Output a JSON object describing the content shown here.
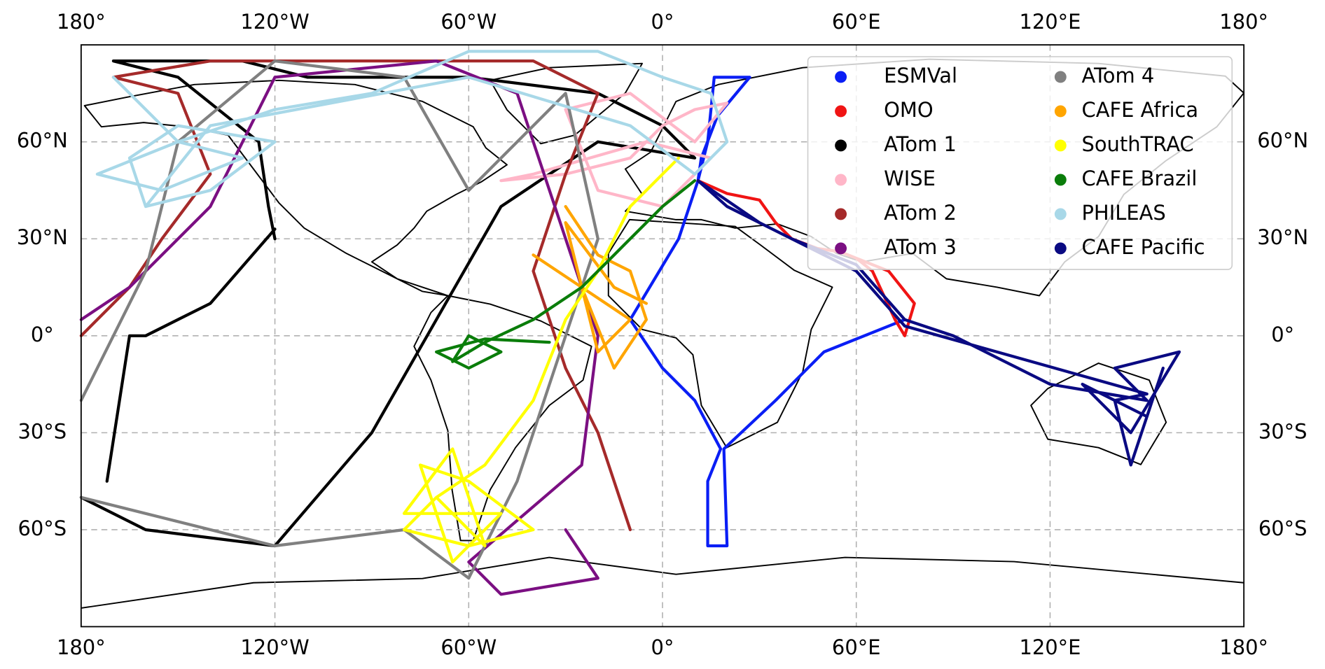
{
  "chart_data": {
    "type": "map",
    "xlim": [
      -180,
      180
    ],
    "ylim": [
      -90,
      90
    ],
    "xticks": [
      {
        "value": -180,
        "label": "180°"
      },
      {
        "value": -120,
        "label": "120°W"
      },
      {
        "value": -60,
        "label": "60°W"
      },
      {
        "value": 0,
        "label": "0°"
      },
      {
        "value": 60,
        "label": "60°E"
      },
      {
        "value": 120,
        "label": "120°E"
      },
      {
        "value": 180,
        "label": "180°"
      }
    ],
    "yticks": [
      {
        "value": 60,
        "label": "60°N"
      },
      {
        "value": 30,
        "label": "30°N"
      },
      {
        "value": 0,
        "label": "0°"
      },
      {
        "value": -30,
        "label": "30°S"
      },
      {
        "value": -60,
        "label": "60°S"
      }
    ],
    "grid": true,
    "legend": "upper right",
    "legend_columns": 2,
    "series": [
      {
        "name": "ESMVal",
        "color": "#0a1ef5",
        "x": [
          11,
          14,
          16,
          25,
          27,
          17,
          12,
          11,
          5,
          -10,
          0,
          10,
          18,
          14,
          14,
          20,
          19,
          35,
          50,
          75
        ],
        "values": [
          48,
          60,
          80,
          80,
          80,
          68,
          55,
          48,
          30,
          5,
          -10,
          -20,
          -35,
          -45,
          -65,
          -65,
          -35,
          -20,
          -5,
          5
        ]
      },
      {
        "name": "OMO",
        "color": "#f01414",
        "x": [
          11,
          20,
          30,
          35,
          40,
          48,
          55,
          60,
          65,
          72,
          75,
          78,
          70,
          60
        ],
        "values": [
          48,
          44,
          42,
          35,
          30,
          27,
          26,
          24,
          20,
          5,
          0,
          10,
          20,
          24
        ]
      },
      {
        "name": "ATom 1",
        "color": "#000000",
        "x": [
          -120,
          -122,
          -125,
          -150,
          -170,
          -130,
          -110,
          -60,
          -20,
          0,
          10,
          -20,
          -50,
          -70,
          -90,
          -120,
          -160,
          -180,
          null,
          -172,
          -165,
          -160,
          -140,
          -120
        ],
        "values": [
          30,
          40,
          60,
          80,
          85,
          85,
          80,
          80,
          75,
          65,
          55,
          60,
          40,
          5,
          -30,
          -65,
          -60,
          -50,
          null,
          -45,
          0,
          0,
          10,
          33
        ]
      },
      {
        "name": "WISE",
        "color": "#ffb6c8",
        "x": [
          -50,
          -30,
          -10,
          0,
          10,
          20,
          10,
          -10,
          -30,
          -20,
          0,
          15,
          -5,
          -40,
          -50
        ],
        "values": [
          48,
          50,
          55,
          65,
          70,
          72,
          60,
          75,
          70,
          45,
          40,
          55,
          60,
          50,
          48
        ]
      },
      {
        "name": "ATom 2",
        "color": "#a52a2a",
        "x": [
          -180,
          -165,
          -155,
          -140,
          -150,
          -170,
          -140,
          -80,
          -40,
          -20,
          -30,
          -40,
          -30,
          -20,
          -10
        ],
        "values": [
          0,
          15,
          30,
          50,
          75,
          80,
          85,
          85,
          85,
          75,
          50,
          20,
          -10,
          -30,
          -60
        ]
      },
      {
        "name": "ATom 3",
        "color": "#7b0f82",
        "x": [
          -180,
          -165,
          -140,
          -120,
          -70,
          -45,
          -40,
          -20,
          -25,
          -60,
          -50,
          -20,
          -30
        ],
        "values": [
          5,
          15,
          40,
          80,
          85,
          75,
          60,
          0,
          -40,
          -70,
          -80,
          -75,
          -60
        ]
      },
      {
        "name": "ATom 4",
        "color": "#808080",
        "x": [
          -180,
          -160,
          -150,
          -120,
          -80,
          -60,
          -40,
          -30,
          -20,
          -45,
          -60,
          -80,
          -120,
          -180
        ],
        "values": [
          -20,
          20,
          60,
          85,
          80,
          45,
          65,
          75,
          30,
          -45,
          -75,
          -60,
          -65,
          -50
        ]
      },
      {
        "name": "CAFE Africa",
        "color": "#ffa500",
        "x": [
          -30,
          -20,
          -10,
          -5,
          -15,
          -25,
          -40,
          -25,
          -10,
          -20,
          -30,
          -15,
          -5
        ],
        "values": [
          40,
          25,
          20,
          5,
          -10,
          15,
          25,
          15,
          5,
          -5,
          35,
          15,
          10
        ]
      },
      {
        "name": "SouthTRAC",
        "color": "#ffff00",
        "x": [
          5,
          -10,
          -20,
          -30,
          -40,
          -55,
          -70,
          -80,
          -60,
          -40,
          -60,
          -75,
          -65,
          -50,
          -80,
          -65,
          -55,
          -70
        ],
        "values": [
          55,
          40,
          20,
          5,
          -20,
          -40,
          -50,
          -60,
          -65,
          -60,
          -45,
          -40,
          -70,
          -55,
          -55,
          -35,
          -65,
          -50
        ]
      },
      {
        "name": "CAFE Brazil",
        "color": "#0a7d0a",
        "x": [
          10,
          0,
          -15,
          -25,
          -40,
          -55,
          -65,
          -60,
          -50,
          -60,
          -70,
          -55,
          -35
        ],
        "values": [
          48,
          40,
          25,
          15,
          5,
          -2,
          -8,
          0,
          -5,
          -10,
          -5,
          -1,
          -2
        ]
      },
      {
        "name": "PHILEAS",
        "color": "#a8d8e8",
        "x": [
          -170,
          -150,
          -130,
          -155,
          -175,
          -150,
          -120,
          -90,
          -60,
          -20,
          0,
          15,
          20,
          10,
          -10,
          -60,
          -140,
          -160,
          -165,
          -150,
          -120,
          -140,
          -160
        ],
        "values": [
          80,
          60,
          55,
          45,
          50,
          60,
          70,
          75,
          88,
          88,
          80,
          75,
          60,
          50,
          65,
          80,
          65,
          40,
          55,
          65,
          60,
          45,
          40
        ]
      },
      {
        "name": "CAFE Pacific",
        "color": "#0a0a82",
        "x": [
          11,
          20,
          40,
          60,
          75,
          90,
          120,
          150,
          140,
          160,
          145,
          130,
          150,
          155,
          145,
          140,
          150,
          75,
          60,
          30,
          11
        ],
        "values": [
          48,
          40,
          30,
          22,
          5,
          0,
          -15,
          -20,
          -10,
          -5,
          -30,
          -15,
          -25,
          -10,
          -40,
          -20,
          -18,
          3,
          20,
          35,
          48
        ]
      }
    ]
  }
}
